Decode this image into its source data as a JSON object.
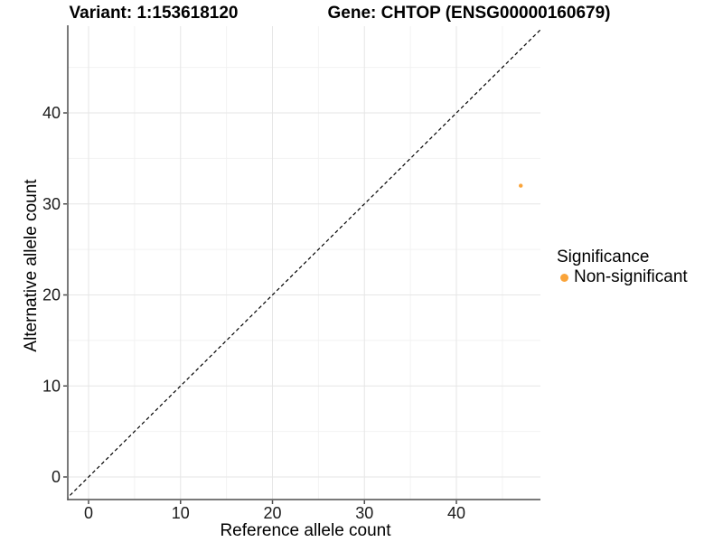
{
  "chart_data": {
    "type": "scatter",
    "title_left": "Variant: 1:153618120",
    "title_right": "Gene: CHTOP (ENSG00000160679)",
    "xlabel": "Reference allele count",
    "ylabel": "Alternative allele count",
    "xlim": [
      -2.3,
      49.3
    ],
    "ylim": [
      -2.5,
      49.4
    ],
    "x_ticks": [
      0,
      10,
      20,
      30,
      40
    ],
    "y_ticks": [
      0,
      10,
      20,
      30,
      40
    ],
    "x_minor_ticks": [
      5,
      15,
      25,
      35,
      45
    ],
    "y_minor_ticks": [
      5,
      15,
      25,
      35,
      45
    ],
    "grid": "major+minor",
    "background": "#ffffff",
    "reference_line": {
      "type": "identity y=x",
      "style": "dashed",
      "color": "#000000"
    },
    "series": [
      {
        "name": "Non-significant",
        "color": "#FAA43A",
        "points": [
          {
            "x": 47,
            "y": 32
          }
        ]
      }
    ],
    "legend": {
      "title": "Significance",
      "position": "right",
      "entries": [
        {
          "label": "Non-significant",
          "color": "#FAA43A"
        }
      ]
    }
  }
}
